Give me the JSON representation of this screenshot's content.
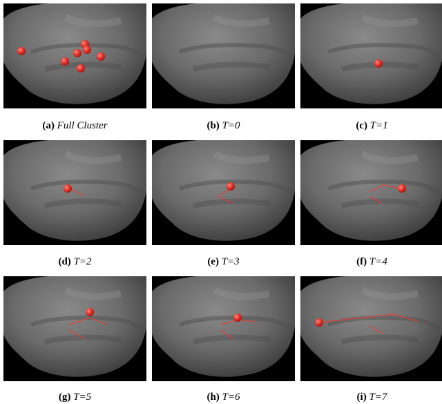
{
  "panels": [
    {
      "label": "(a)",
      "caption": "Full Cluster"
    },
    {
      "label": "(b)",
      "caption": "T=0"
    },
    {
      "label": "(c)",
      "caption": "T=1"
    },
    {
      "label": "(d)",
      "caption": "T=2"
    },
    {
      "label": "(e)",
      "caption": "T=3"
    },
    {
      "label": "(f)",
      "caption": "T=4"
    },
    {
      "label": "(g)",
      "caption": "T=5"
    },
    {
      "label": "(h)",
      "caption": "T=6"
    },
    {
      "label": "(i)",
      "caption": "T=7"
    }
  ]
}
